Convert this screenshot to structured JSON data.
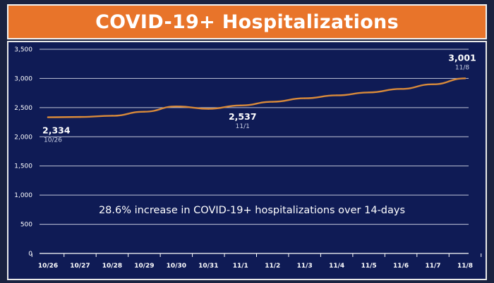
{
  "title": "COVID-19+ Hospitalizations",
  "colors": {
    "title_bar": "#e8742a",
    "plot_background": "#0f1b55",
    "line": "#d98a3a",
    "grid": "#dfe3ef"
  },
  "chart_data": {
    "type": "line",
    "title": "COVID-19+ Hospitalizations",
    "xlabel": "",
    "ylabel": "",
    "categories": [
      "10/26",
      "10/27",
      "10/28",
      "10/29",
      "10/30",
      "10/31",
      "11/1",
      "11/2",
      "11/3",
      "11/4",
      "11/5",
      "11/6",
      "11/7",
      "11/8"
    ],
    "values": [
      2334,
      2340,
      2360,
      2430,
      2520,
      2480,
      2537,
      2600,
      2660,
      2710,
      2760,
      2820,
      2900,
      3001
    ],
    "ylim": [
      0,
      3500
    ],
    "yticks": [
      0,
      500,
      1000,
      1500,
      2000,
      2500,
      3000,
      3500
    ],
    "ytick_labels": [
      "0",
      "500",
      "1,000",
      "1,500",
      "2,000",
      "2,500",
      "3,000",
      "3,500"
    ],
    "grid": true,
    "legend": "none",
    "annotations": [
      {
        "index": 0,
        "value_label": "2,334",
        "date_label": "10/26"
      },
      {
        "index": 6,
        "value_label": "2,537",
        "date_label": "11/1"
      },
      {
        "index": 13,
        "value_label": "3,001",
        "date_label": "11/8"
      }
    ],
    "caption": "28.6% increase in COVID-19+ hospitalizations over 14-days"
  }
}
